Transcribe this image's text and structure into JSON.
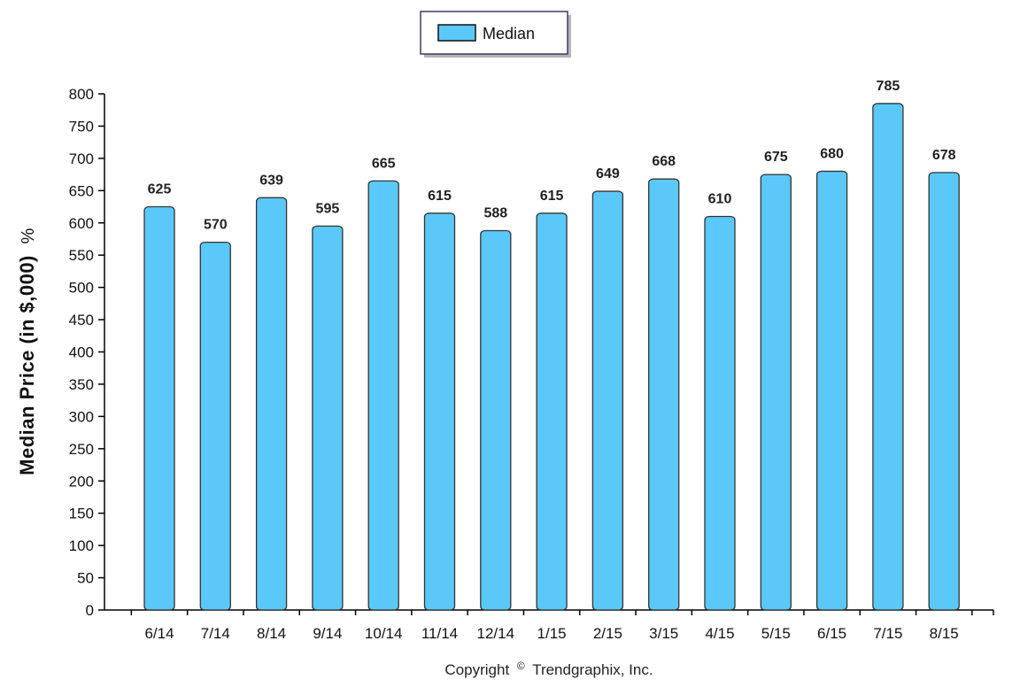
{
  "chart_data": {
    "type": "bar",
    "categories": [
      "6/14",
      "7/14",
      "8/14",
      "9/14",
      "10/14",
      "11/14",
      "12/14",
      "1/15",
      "2/15",
      "3/15",
      "4/15",
      "5/15",
      "6/15",
      "7/15",
      "8/15"
    ],
    "series": [
      {
        "name": "Median",
        "values": [
          625,
          570,
          639,
          595,
          665,
          615,
          588,
          615,
          649,
          668,
          610,
          675,
          680,
          785,
          678
        ],
        "color": "#5BC8FA"
      }
    ],
    "ylabel": "Median Price (in $,000)",
    "ylabel_unit": "%",
    "xlabel": "",
    "ylim": [
      0,
      800
    ],
    "yticks": [
      0,
      50,
      100,
      150,
      200,
      250,
      300,
      350,
      400,
      450,
      500,
      550,
      600,
      650,
      700,
      750,
      800
    ],
    "data_labels": true,
    "legend": {
      "position": "top-center",
      "entries": [
        "Median"
      ]
    },
    "grid": false
  },
  "footer": {
    "copyright_prefix": "Copyright",
    "copyright_symbol": "©",
    "copyright_owner": "Trendgraphix, Inc."
  }
}
